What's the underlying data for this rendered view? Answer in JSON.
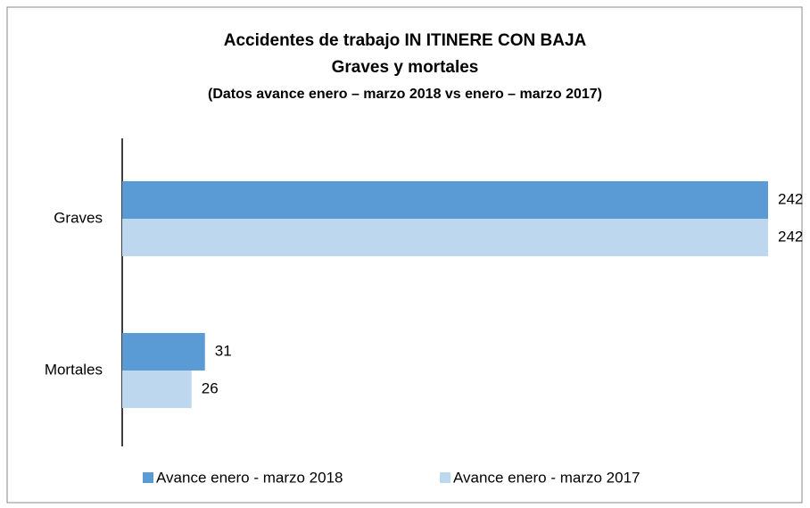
{
  "chart_data": {
    "type": "bar",
    "orientation": "horizontal",
    "title": "Accidentes de trabajo IN ITINERE CON BAJA",
    "subtitle": "Graves y mortales",
    "note": "(Datos avance enero – marzo 2018 vs enero – marzo 2017)",
    "categories": [
      "Graves",
      "Mortales"
    ],
    "series": [
      {
        "name": "Avance enero - marzo 2018",
        "color": "#5b9bd5",
        "values": [
          242,
          31
        ]
      },
      {
        "name": "Avance enero - marzo 2017",
        "color": "#bdd7ee",
        "values": [
          242,
          26
        ]
      }
    ],
    "xlim": [
      0,
      242
    ],
    "legend": "bottom"
  }
}
